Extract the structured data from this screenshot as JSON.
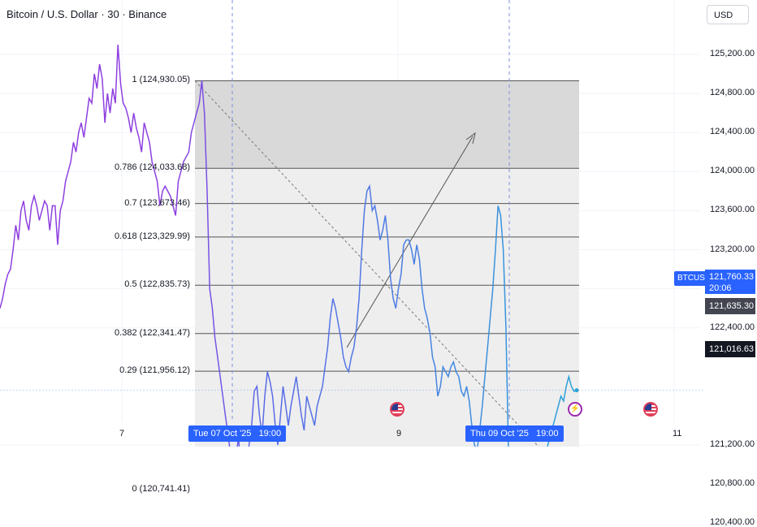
{
  "header": {
    "title": "Bitcoin / U.S. Dollar · 30 · Binance",
    "currency": "USD"
  },
  "y_axis": {
    "labels": [
      "125,200.00",
      "124,800.00",
      "124,400.00",
      "124,000.00",
      "123,600.00",
      "123,200.00",
      "122,800.00",
      "122,400.00",
      "121,200.00",
      "120,800.00",
      "120,400.00"
    ]
  },
  "x_axis": {
    "labels": [
      "7",
      "9",
      "11"
    ],
    "highlight_labels": [
      "Tue 07 Oct '25   19:00",
      "Thu 09 Oct '25   19:00"
    ]
  },
  "price_scale": {
    "symbol": "BTCUSD",
    "last_price": "121,760.33",
    "countdown": "20:06",
    "marker_price": "121,635.30",
    "line_price": "121,016.63",
    "colors": {
      "blue": "#2962ff",
      "dark": "#131722",
      "gray": "#434651"
    }
  },
  "fib_levels": [
    {
      "label": "1 (124,930.05)",
      "price": 124930.05
    },
    {
      "label": "0.786 (124,033.68)",
      "price": 124033.68
    },
    {
      "label": "0.7 (123,673.46)",
      "price": 123673.46
    },
    {
      "label": "0.618 (123,329.99)",
      "price": 123329.99
    },
    {
      "label": "0.5 (122,835.73)",
      "price": 122835.73
    },
    {
      "label": "0.382 (122,341.47)",
      "price": 122341.47
    },
    {
      "label": "0.29 (121,956.12)",
      "price": 121956.12
    },
    {
      "label": "0 (120,741.41)",
      "price": 120741.41
    }
  ],
  "events": {
    "flags": [
      "us-flag-icon",
      "us-flag-icon"
    ],
    "bolt": "lightning-icon"
  },
  "chart_data": {
    "type": "line",
    "title": "Bitcoin / U.S. Dollar · 30 · Binance",
    "xlabel": "",
    "ylabel": "",
    "ylim": [
      120000,
      125600
    ],
    "series": [
      {
        "values": [
          122600,
          122700,
          122850,
          122950,
          123000,
          123200,
          123450,
          123300,
          123600,
          123700,
          123500,
          123400,
          123650,
          123750,
          123650,
          123500,
          123600,
          123700,
          123650,
          123400,
          123650,
          123650,
          123250,
          123600,
          123700,
          123900,
          124000,
          124100,
          124300,
          124200,
          124400,
          124500,
          124350,
          124550,
          124750,
          124700,
          125000,
          124850,
          125100,
          124950,
          124500,
          124800,
          124600,
          124850,
          124700,
          125300,
          124900,
          124700,
          124650,
          124550,
          124400,
          124600,
          124450,
          124350,
          124200,
          124500,
          124400,
          124300,
          124100,
          124000,
          123900,
          123650,
          123800,
          123850,
          123800,
          123750,
          123650,
          123550,
          123900,
          124000,
          124100,
          124150,
          124200,
          124400,
          124500,
          124600,
          124700,
          124930,
          124600,
          123800,
          122800,
          122600,
          122300,
          122100,
          121900,
          121700,
          121500,
          121300,
          121100,
          120950,
          121050,
          121300,
          120800,
          121050,
          120900,
          121200,
          121400,
          121750,
          121800,
          121500,
          121300,
          121700,
          121950,
          121850,
          121700,
          121400,
          121200,
          121500,
          121800,
          121600,
          121400,
          121600,
          121750,
          121900,
          121700,
          121500,
          121350,
          121700,
          121600,
          121500,
          121400,
          121600,
          121700,
          121800,
          122000,
          122200,
          122500,
          122700,
          122600,
          122450,
          122300,
          122100,
          122000,
          121950,
          122100,
          122200,
          122400,
          122700,
          123200,
          123600,
          123800,
          123850,
          123600,
          123650,
          123500,
          123300,
          123400,
          123550,
          123300,
          122900,
          122700,
          122600,
          122800,
          122950,
          123250,
          123300,
          123300,
          123200,
          123050,
          123250,
          123100,
          122800,
          122600,
          122500,
          122350,
          122100,
          122000,
          121700,
          121800,
          122000,
          121950,
          121900,
          122000,
          122050,
          121950,
          121900,
          121750,
          121700,
          121800,
          121650,
          121400,
          121200,
          121150,
          121350,
          121600,
          121900,
          122200,
          122500,
          122800,
          123200,
          123650,
          123550,
          123200,
          122400,
          121100,
          120900,
          121000,
          121150,
          120950,
          120200,
          120450,
          120650,
          120850,
          120600,
          120750,
          120850,
          120700,
          120900,
          121000,
          121200,
          121300,
          121400,
          121500,
          121600,
          121700,
          121650,
          121800,
          121900,
          121800,
          121750,
          121760
        ]
      }
    ]
  }
}
